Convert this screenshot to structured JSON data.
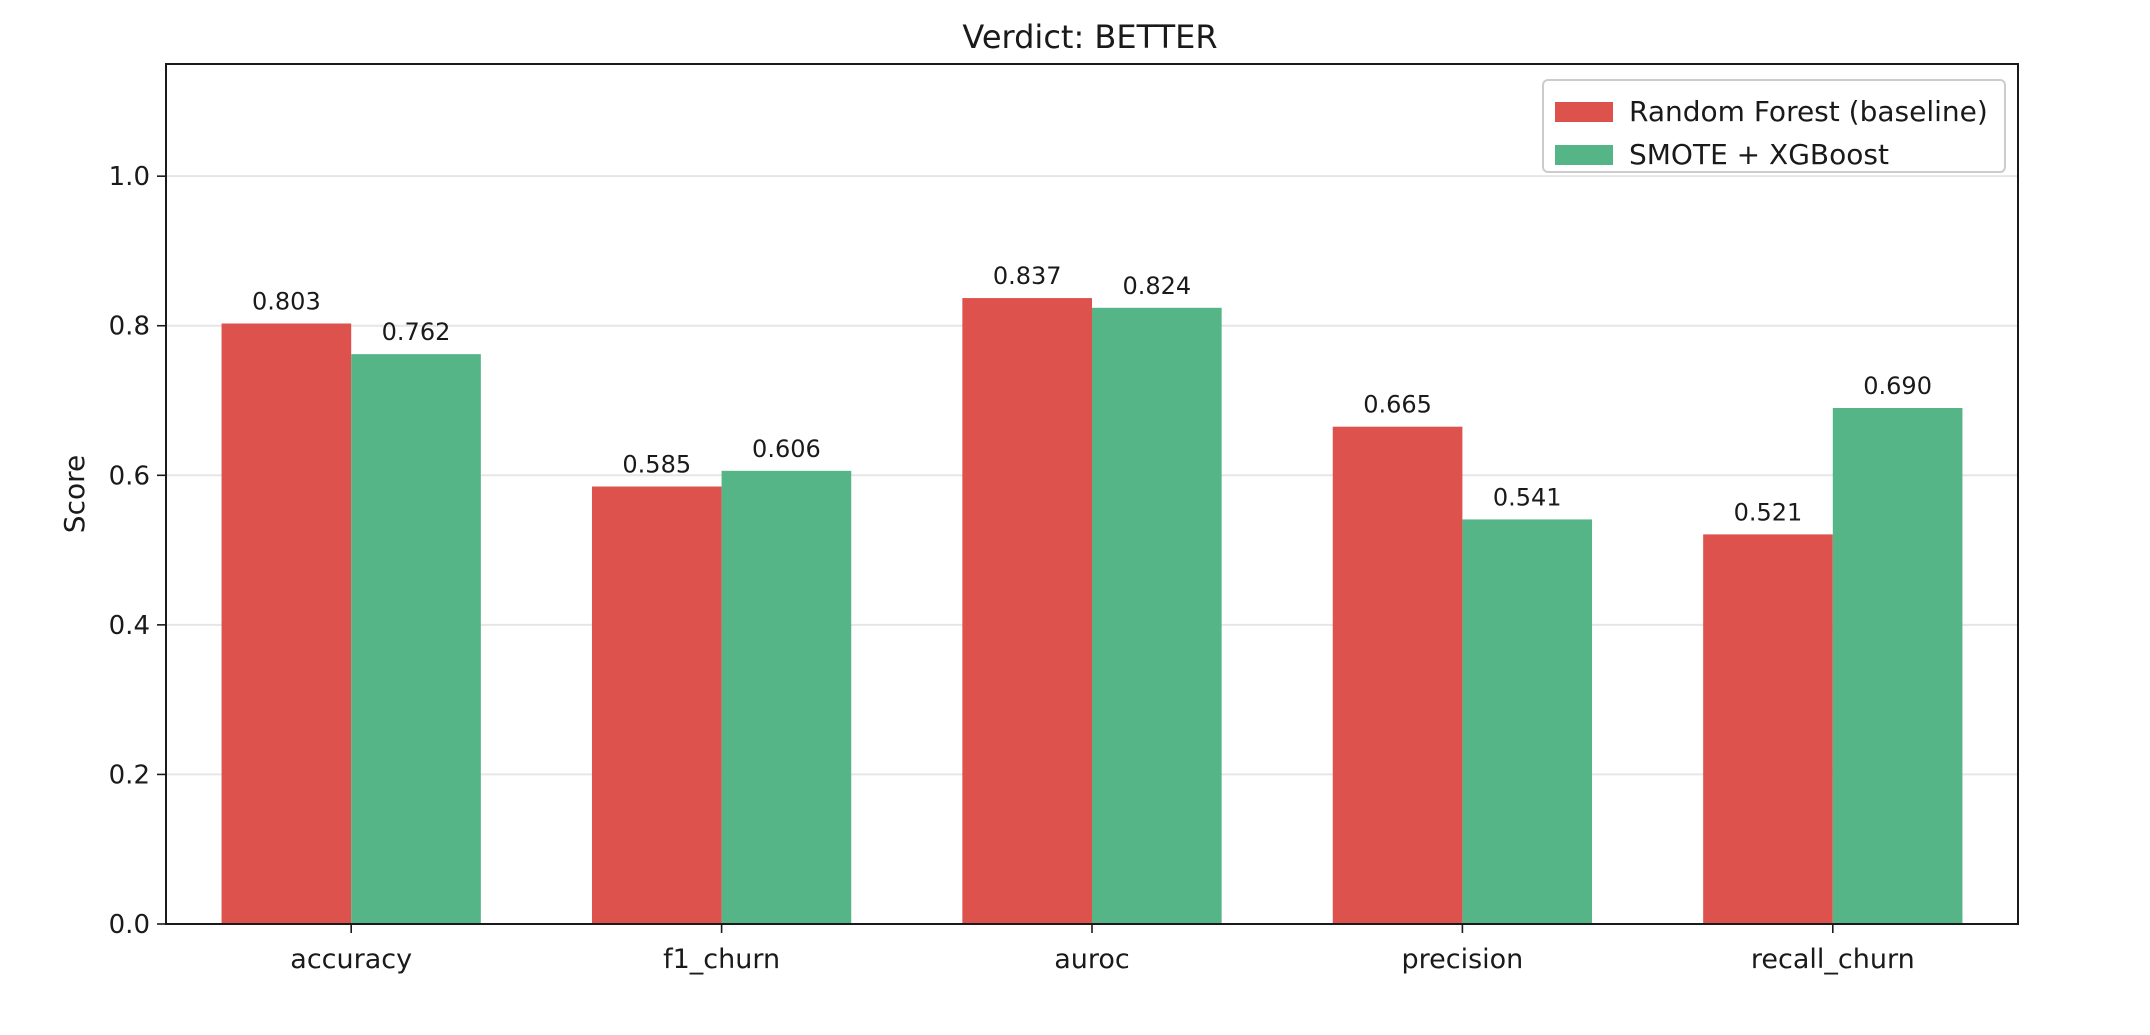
{
  "chart_data": {
    "type": "bar",
    "title": "Verdict: BETTER",
    "xlabel": "",
    "ylabel": "Score",
    "categories": [
      "accuracy",
      "f1_churn",
      "auroc",
      "precision",
      "recall_churn"
    ],
    "series": [
      {
        "name": "Random Forest (baseline)",
        "color": "#dd524d",
        "values": [
          0.803,
          0.585,
          0.837,
          0.665,
          0.521
        ]
      },
      {
        "name": "SMOTE + XGBoost",
        "color": "#55b586",
        "values": [
          0.762,
          0.606,
          0.824,
          0.541,
          0.69
        ]
      }
    ],
    "data_labels": [
      [
        "0.803",
        "0.585",
        "0.837",
        "0.665",
        "0.521"
      ],
      [
        "0.762",
        "0.606",
        "0.824",
        "0.541",
        "0.690"
      ]
    ],
    "yticks": [
      0.0,
      0.2,
      0.4,
      0.6,
      0.8,
      1.0
    ],
    "ytick_labels": [
      "0.0",
      "0.2",
      "0.4",
      "0.6",
      "0.8",
      "1.0"
    ],
    "ylim": [
      0,
      1.15
    ],
    "grid": "y",
    "legend_position": "top-right"
  }
}
